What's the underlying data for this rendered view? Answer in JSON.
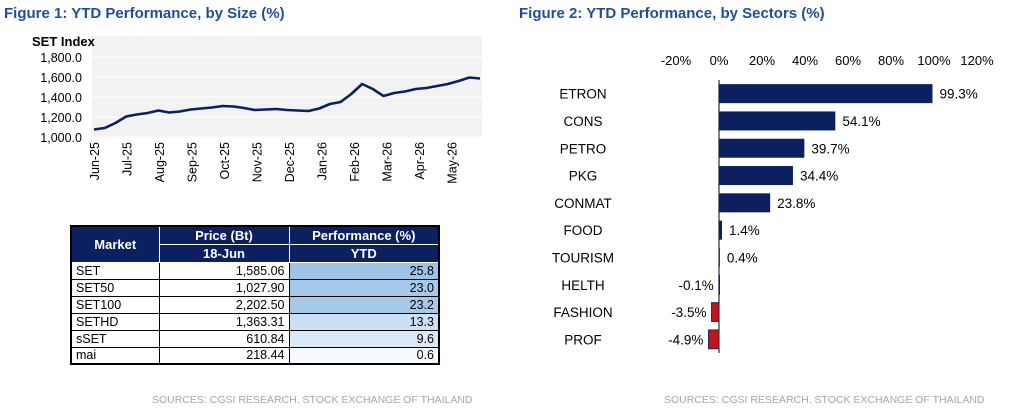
{
  "figure1": {
    "title": "Figure 1: YTD Performance, by Size (%)",
    "source": "SOURCES: CGSI RESEARCH, STOCK EXCHANGE OF THAILAND"
  },
  "figure2": {
    "title": "Figure 2: YTD Performance, by Sectors (%)",
    "source": "SOURCES: CGSI RESEARCH, STOCK EXCHANGE OF THAILAND"
  },
  "chart_data": [
    {
      "type": "line",
      "title": "SET Index",
      "series_color": "#0c1f5f",
      "ylim": [
        1000,
        1800
      ],
      "y_ticks": [
        "1,000.0",
        "1,200.0",
        "1,400.0",
        "1,600.0",
        "1,800.0"
      ],
      "x_ticks": [
        "Jun-25",
        "Jul-25",
        "Aug-25",
        "Sep-25",
        "Oct-25",
        "Nov-25",
        "Dec-25",
        "Jan-26",
        "Feb-26",
        "Mar-26",
        "Apr-26",
        "May-26"
      ],
      "grid": "horizontal",
      "x": [
        "Jun-25",
        "Jun-25",
        "Jun-25",
        "Jul-25",
        "Jul-25",
        "Jul-25",
        "Aug-25",
        "Aug-25",
        "Aug-25",
        "Sep-25",
        "Sep-25",
        "Sep-25",
        "Oct-25",
        "Oct-25",
        "Oct-25",
        "Nov-25",
        "Nov-25",
        "Nov-25",
        "Dec-25",
        "Dec-25",
        "Dec-25",
        "Jan-26",
        "Jan-26",
        "Jan-26",
        "Feb-26",
        "Feb-26",
        "Feb-26",
        "Mar-26",
        "Mar-26",
        "Mar-26",
        "Apr-26",
        "Apr-26",
        "Apr-26",
        "May-26",
        "May-26",
        "May-26",
        "Jun-26"
      ],
      "values": [
        1075,
        1090,
        1140,
        1205,
        1225,
        1240,
        1265,
        1245,
        1255,
        1275,
        1285,
        1295,
        1310,
        1305,
        1290,
        1270,
        1275,
        1280,
        1270,
        1265,
        1260,
        1285,
        1330,
        1350,
        1430,
        1530,
        1480,
        1410,
        1440,
        1455,
        1480,
        1490,
        1510,
        1530,
        1560,
        1595,
        1585
      ]
    },
    {
      "type": "table",
      "header_market": "Market",
      "header_price": "Price (Bt)",
      "header_price_sub": "18-Jun",
      "header_perf": "Performance (%)",
      "header_perf_sub": "YTD",
      "rows": [
        {
          "market": "SET",
          "price": "1,585.06",
          "perf": "25.8",
          "shade": "#9dc3e6"
        },
        {
          "market": "SET50",
          "price": "1,027.90",
          "perf": "23.0",
          "shade": "#a6c8e9"
        },
        {
          "market": "SET100",
          "price": "2,202.50",
          "perf": "23.2",
          "shade": "#a6c8e9"
        },
        {
          "market": "SETHD",
          "price": "1,363.31",
          "perf": "13.3",
          "shade": "#cddff2"
        },
        {
          "market": "sSET",
          "price": "610.84",
          "perf": "9.6",
          "shade": "#dbe8f6"
        },
        {
          "market": "mai",
          "price": "218.44",
          "perf": "0.6",
          "shade": "#f6f9fd"
        }
      ]
    },
    {
      "type": "bar",
      "orientation": "horizontal",
      "xlim": [
        -20,
        120
      ],
      "x_ticks": [
        "-20%",
        "0%",
        "20%",
        "40%",
        "60%",
        "80%",
        "100%",
        "120%"
      ],
      "positive_color": "#0c1f5f",
      "negative_color": "#c0141b",
      "categories": [
        "ETRON",
        "CONS",
        "PETRO",
        "PKG",
        "CONMAT",
        "FOOD",
        "TOURISM",
        "HELTH",
        "FASHION",
        "PROF"
      ],
      "values": [
        99.3,
        54.1,
        39.7,
        34.4,
        23.8,
        1.4,
        0.4,
        -0.1,
        -3.5,
        -4.9
      ],
      "value_labels": [
        "99.3%",
        "54.1%",
        "39.7%",
        "34.4%",
        "23.8%",
        "1.4%",
        "0.4%",
        "-0.1%",
        "-3.5%",
        "-4.9%"
      ]
    }
  ]
}
